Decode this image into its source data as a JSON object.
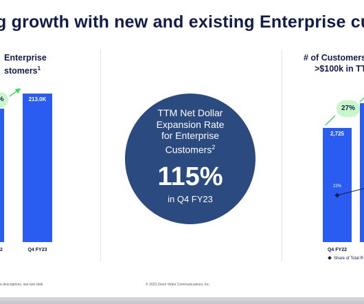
{
  "slide": {
    "title": "g growth with new and existing Enterprise cu",
    "left_panel": {
      "heading_line1": "Enterprise",
      "heading_line2": "stomers",
      "heading_sup": "1",
      "growth": "%",
      "bar_value": "213.0K",
      "bar_period": "Q4 FY23",
      "bar_period_cut": "2"
    },
    "center": {
      "line1": "TTM Net Dollar",
      "line2": "Expansion Rate",
      "line3": "for Enterprise",
      "line4": "Customers",
      "line4_sup": "2",
      "value": "115%",
      "period": "in Q4 FY23"
    },
    "right_panel": {
      "heading_line1": "# of Customers",
      "heading_line2": ">$100k in TT",
      "growth": "27%",
      "bar_value": "2,725",
      "bar_share": "22%",
      "bar_period": "Q4 FY22",
      "legend": "Share of Total R"
    },
    "footer_left": "e descriptions, see last slide",
    "footer_center": "© 2023 Zoom Video Communications, Inc."
  },
  "colors": {
    "bar": "#2b5cf2",
    "navy": "#131c48",
    "circle": "#2a4a80",
    "pill": "#c8f7c9",
    "arrow": "#43d66a"
  }
}
